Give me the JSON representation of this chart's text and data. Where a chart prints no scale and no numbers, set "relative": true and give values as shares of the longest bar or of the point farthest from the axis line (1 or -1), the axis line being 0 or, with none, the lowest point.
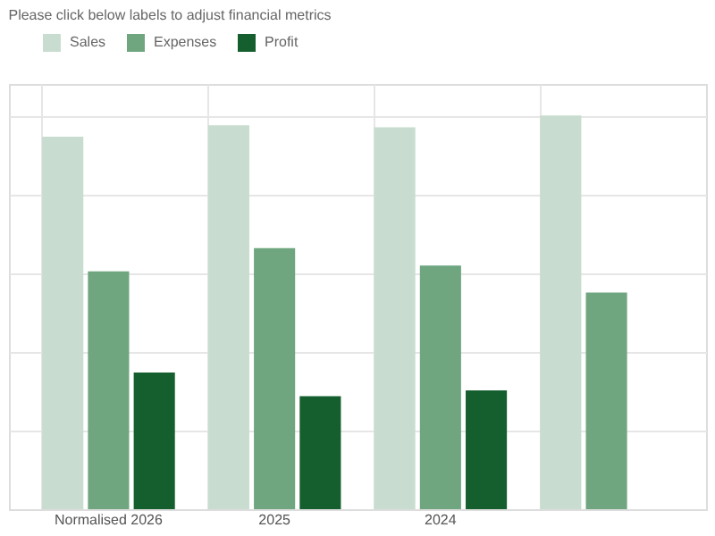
{
  "chart_data": {
    "type": "bar",
    "relative": true,
    "legend_title": "Please click below labels to adjust financial metrics",
    "legend": "top",
    "grid": true,
    "categories": [
      "Normalised 2026",
      "2025",
      "2024",
      null
    ],
    "series": [
      {
        "name": "Sales",
        "color": "#c8ddd0",
        "values": [
          0.946,
          0.975,
          0.97,
          1
        ]
      },
      {
        "name": "Expenses",
        "color": "#6fa680",
        "values": [
          0.604,
          0.663,
          0.619,
          0.55
        ]
      },
      {
        "name": "Profit",
        "color": "#155e2e",
        "values": [
          0.347,
          0.287,
          0.302,
          null
        ]
      }
    ]
  }
}
